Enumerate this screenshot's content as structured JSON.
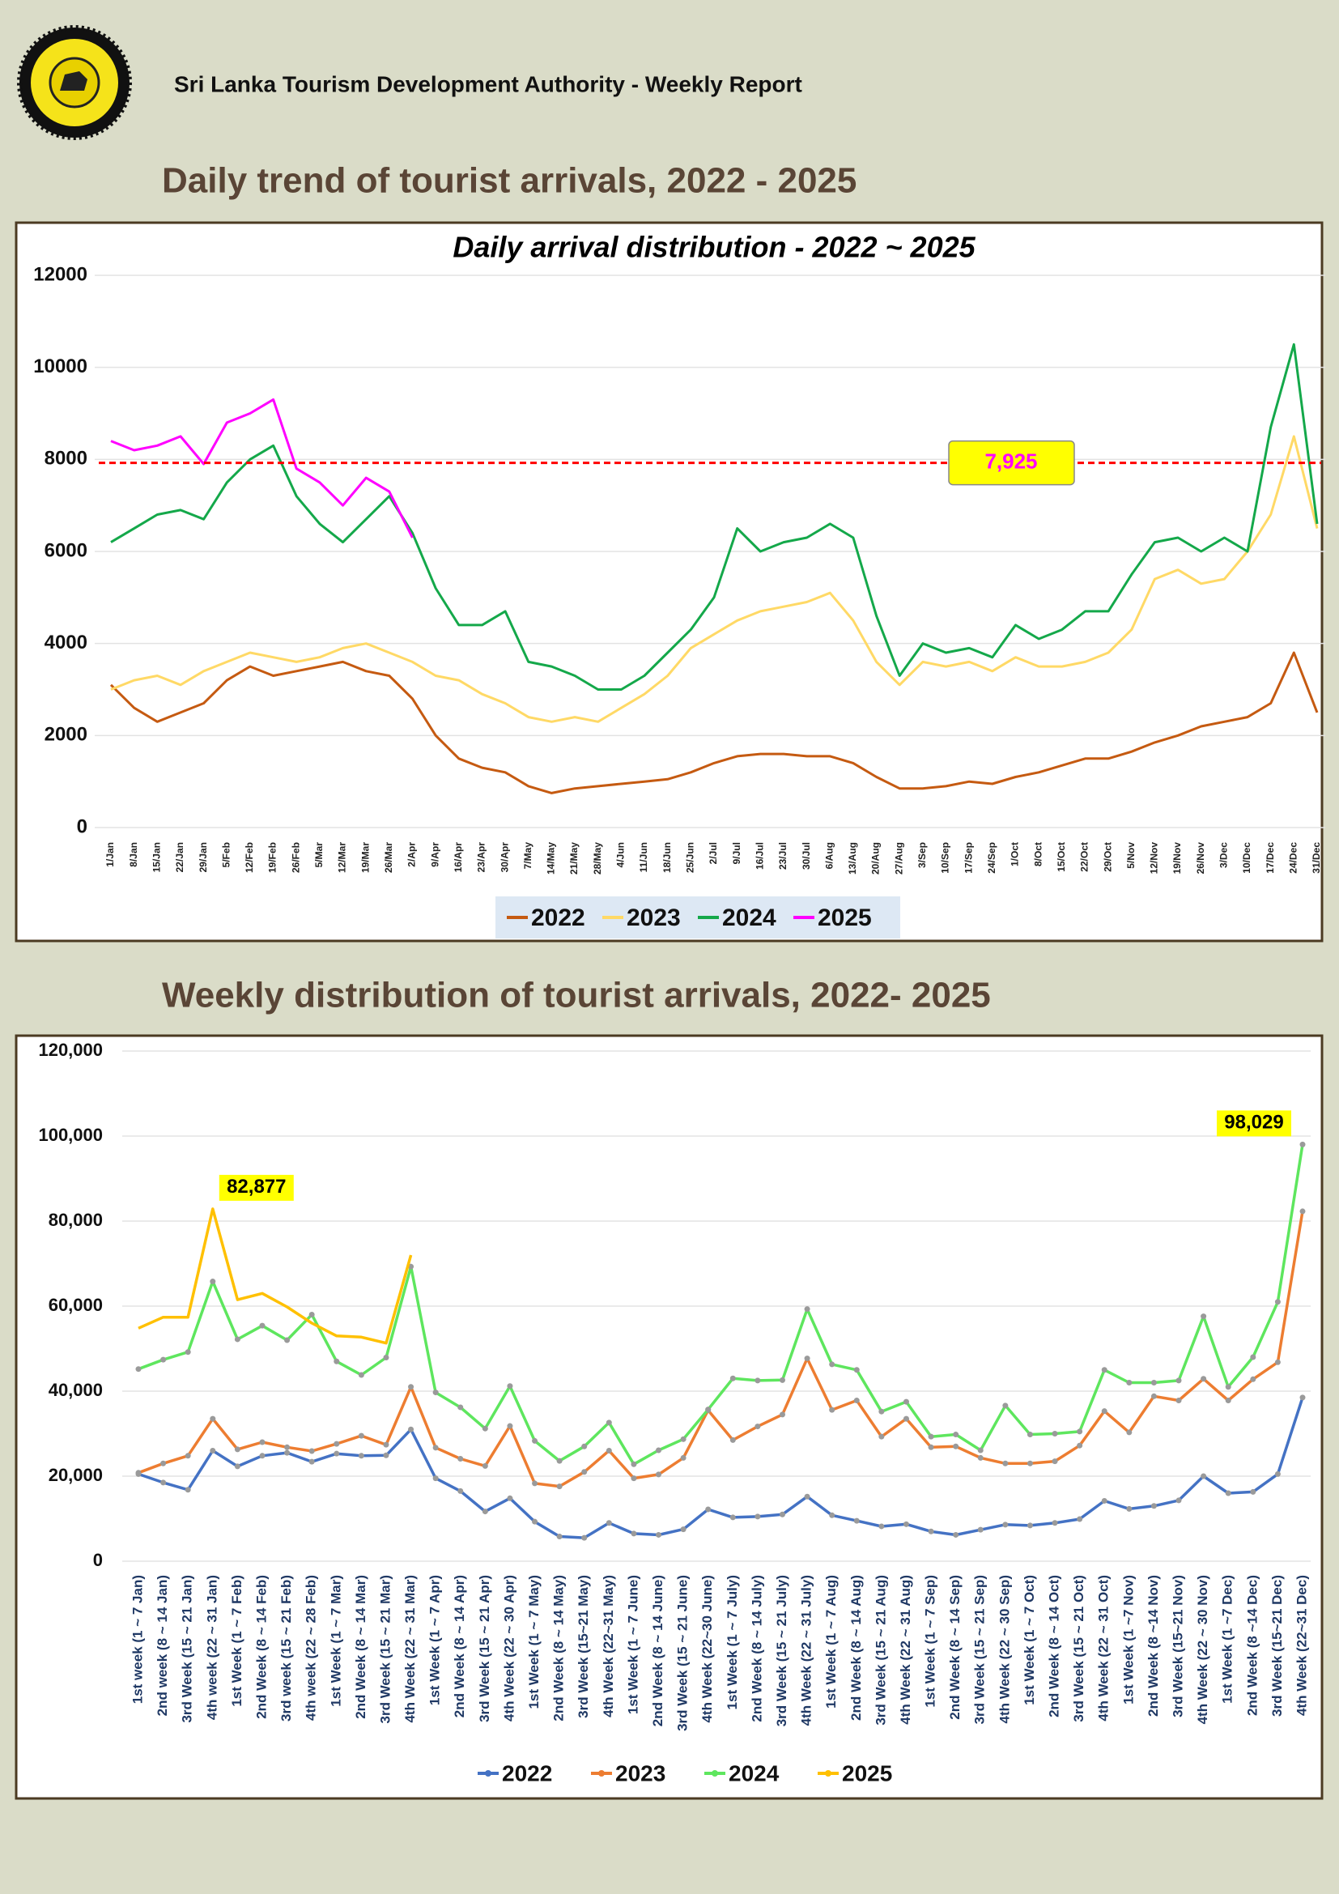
{
  "header": {
    "text": "Sri Lanka Tourism Development Authority - Weekly Report"
  },
  "headings": [
    "Daily trend of tourist arrivals, 2022 - 2025",
    "Weekly distribution of tourist arrivals, 2022- 2025"
  ],
  "chart_data": [
    {
      "type": "line",
      "title": "Daily arrival distribution - 2022 ~ 2025",
      "categories": [
        "1/Jan",
        "8/Jan",
        "15/Jan",
        "22/Jan",
        "29/Jan",
        "5/Feb",
        "12/Feb",
        "19/Feb",
        "26/Feb",
        "5/Mar",
        "12/Mar",
        "19/Mar",
        "26/Mar",
        "2/Apr",
        "9/Apr",
        "16/Apr",
        "23/Apr",
        "30/Apr",
        "7/May",
        "14/May",
        "21/May",
        "28/May",
        "4/Jun",
        "11/Jun",
        "18/Jun",
        "25/Jun",
        "2/Jul",
        "9/Jul",
        "16/Jul",
        "23/Jul",
        "30/Jul",
        "6/Aug",
        "13/Aug",
        "20/Aug",
        "27/Aug",
        "3/Sep",
        "10/Sep",
        "17/Sep",
        "24/Sep",
        "1/Oct",
        "8/Oct",
        "15/Oct",
        "22/Oct",
        "29/Oct",
        "5/Nov",
        "12/Nov",
        "19/Nov",
        "26/Nov",
        "3/Dec",
        "10/Dec",
        "17/Dec",
        "24/Dec",
        "31/Dec"
      ],
      "series": [
        {
          "name": "2022",
          "color": "#c55a11",
          "values": [
            3100,
            2600,
            2300,
            2500,
            2700,
            3200,
            3500,
            3300,
            3400,
            3500,
            3600,
            3400,
            3300,
            2800,
            2000,
            1500,
            1300,
            1200,
            900,
            750,
            850,
            900,
            950,
            1000,
            1050,
            1200,
            1400,
            1550,
            1600,
            1600,
            1550,
            1550,
            1400,
            1100,
            850,
            850,
            900,
            1000,
            950,
            1100,
            1200,
            1350,
            1500,
            1500,
            1650,
            1850,
            2000,
            2200,
            2300,
            2400,
            2700,
            3800,
            2500
          ]
        },
        {
          "name": "2023",
          "color": "#ffd966",
          "values": [
            3000,
            3200,
            3300,
            3100,
            3400,
            3600,
            3800,
            3700,
            3600,
            3700,
            3900,
            4000,
            3800,
            3600,
            3300,
            3200,
            2900,
            2700,
            2400,
            2300,
            2400,
            2300,
            2600,
            2900,
            3300,
            3900,
            4200,
            4500,
            4700,
            4800,
            4900,
            5100,
            4500,
            3600,
            3100,
            3600,
            3500,
            3600,
            3400,
            3700,
            3500,
            3500,
            3600,
            3800,
            4300,
            5400,
            5600,
            5300,
            5400,
            6000,
            6800,
            8500,
            6500
          ]
        },
        {
          "name": "2024",
          "color": "#14a84a",
          "values": [
            6200,
            6500,
            6800,
            6900,
            6700,
            7500,
            8000,
            8300,
            7200,
            6600,
            6200,
            6700,
            7200,
            6400,
            5200,
            4400,
            4400,
            4700,
            3600,
            3500,
            3300,
            3000,
            3000,
            3300,
            3800,
            4300,
            5000,
            6500,
            6000,
            6200,
            6300,
            6600,
            6300,
            4600,
            3300,
            4000,
            3800,
            3900,
            3700,
            4400,
            4100,
            4300,
            4700,
            4700,
            5500,
            6200,
            6300,
            6000,
            6300,
            6000,
            8700,
            10500,
            6600
          ]
        },
        {
          "name": "2025",
          "color": "#ff00ff",
          "values": [
            8400,
            8200,
            8300,
            8500,
            7900,
            8800,
            9000,
            9300,
            7800,
            7500,
            7000,
            7600,
            7300,
            6300,
            null,
            null,
            null,
            null,
            null,
            null,
            null,
            null,
            null,
            null,
            null,
            null,
            null,
            null,
            null,
            null,
            null,
            null,
            null,
            null,
            null,
            null,
            null,
            null,
            null,
            null,
            null,
            null,
            null,
            null,
            null,
            null,
            null,
            null,
            null,
            null,
            null,
            null,
            null
          ]
        }
      ],
      "ylim": [
        0,
        12000
      ],
      "yticks": [
        0,
        2000,
        4000,
        6000,
        8000,
        10000,
        12000
      ],
      "grid": true,
      "legend": "bottom",
      "reference_line": {
        "value": 7925,
        "label": "7,925",
        "color": "#ff0000"
      }
    },
    {
      "type": "line",
      "categories": [
        "1st week (1 ~ 7 Jan)",
        "2nd week (8 ~ 14 Jan)",
        "3rd Week (15 ~ 21 Jan)",
        "4th week (22 ~ 31 Jan)",
        "1st Week (1 ~ 7 Feb)",
        "2nd Week (8 ~ 14 Feb)",
        "3rd week (15 ~ 21 Feb)",
        "4th week (22 ~ 28 Feb)",
        "1st Week (1 ~ 7 Mar)",
        "2nd Week (8 ~ 14 Mar)",
        "3rd Week (15 ~ 21 Mar)",
        "4th Week (22 ~ 31 Mar)",
        "1st Week (1 ~ 7 Apr)",
        "2nd Week (8 ~ 14 Apr)",
        "3rd Week (15 ~ 21 Apr)",
        "4th Week (22 ~ 30 Apr)",
        "1st Week (1 ~ 7 May)",
        "2nd Week (8 ~ 14 May)",
        "3rd Week (15~21 May)",
        "4th Week (22~31 May)",
        "1st Week (1 ~ 7 June)",
        "2nd Week (8 ~ 14 June)",
        "3rd Week (15 ~ 21 June)",
        "4th Week (22~30 June)",
        "1st Week (1 ~ 7 July)",
        "2nd Week (8 ~ 14 July)",
        "3rd Week (15 ~ 21 July)",
        "4th Week (22 ~ 31 July)",
        "1st Week (1 ~ 7 Aug)",
        "2nd Week (8 ~ 14 Aug)",
        "3rd Week (15 ~ 21 Aug)",
        "4th Week (22 ~ 31 Aug)",
        "1st Week (1 ~ 7 Sep)",
        "2nd Week (8 ~ 14 Sep)",
        "3rd Week (15 ~ 21 Sep)",
        "4th Week (22 ~ 30 Sep)",
        "1st Week (1 ~ 7 Oct)",
        "2nd Week (8 ~ 14 Oct)",
        "3rd Week (15 ~ 21 Oct)",
        "4th Week (22 ~ 31 Oct)",
        "1st Week (1 ~7 Nov)",
        "2nd Week (8 ~14 Nov)",
        "3rd Week (15~21 Nov)",
        "4th Week (22 ~ 30 Nov)",
        "1st Week (1 ~7 Dec)",
        "2nd Week (8 ~14 Dec)",
        "3rd Week (15~21 Dec)",
        "4th Week (22~31 Dec)"
      ],
      "series": [
        {
          "name": "2022",
          "color": "#4472c4",
          "values": [
            20500,
            18500,
            16800,
            26000,
            22300,
            24800,
            25500,
            23400,
            25300,
            24800,
            24900,
            31000,
            19500,
            16500,
            11700,
            14800,
            9300,
            5800,
            5500,
            9000,
            6500,
            6200,
            7500,
            12200,
            10300,
            10500,
            11000,
            15200,
            10800,
            9500,
            8200,
            8700,
            7000,
            6200,
            7400,
            8600,
            8400,
            9000,
            9900,
            14200,
            12300,
            13000,
            14300,
            20000,
            16000,
            16300,
            20500,
            38500
          ]
        },
        {
          "name": "2023",
          "color": "#ed7d31",
          "values": [
            20800,
            23000,
            24800,
            33500,
            26300,
            28000,
            26800,
            25900,
            27600,
            29500,
            27400,
            41000,
            26700,
            24100,
            22400,
            31800,
            18300,
            17600,
            21000,
            26000,
            19500,
            20400,
            24300,
            35500,
            28500,
            31700,
            34500,
            47700,
            35600,
            37800,
            29300,
            33500,
            26800,
            27000,
            24300,
            23000,
            23000,
            23500,
            27200,
            35300,
            30300,
            38800,
            37800,
            42900,
            37800,
            42800,
            46800,
            82300
          ]
        },
        {
          "name": "2024",
          "color": "#5ee65e",
          "values": [
            45200,
            47400,
            49200,
            65800,
            52200,
            55400,
            52000,
            58000,
            47000,
            43800,
            47900,
            69300,
            39700,
            36200,
            31200,
            41200,
            28300,
            23600,
            27000,
            32600,
            22800,
            26100,
            28700,
            35700,
            43000,
            42500,
            42600,
            59300,
            46300,
            45000,
            35200,
            37500,
            29300,
            29800,
            26100,
            36600,
            29800,
            30000,
            30500,
            45000,
            42000,
            42000,
            42500,
            57600,
            41000,
            48000,
            61000,
            98029
          ],
          "value_labels": [
            null,
            null,
            null,
            null,
            null,
            null,
            null,
            null,
            null,
            null,
            null,
            null,
            null,
            null,
            null,
            null,
            null,
            null,
            null,
            null,
            null,
            null,
            null,
            null,
            null,
            null,
            null,
            null,
            null,
            null,
            null,
            null,
            null,
            null,
            null,
            null,
            null,
            null,
            null,
            null,
            null,
            null,
            null,
            null,
            null,
            null,
            null,
            "98,029"
          ]
        },
        {
          "name": "2025",
          "color": "#ffc000",
          "values": [
            54800,
            57400,
            57400,
            82877,
            61500,
            63000,
            59800,
            56000,
            53000,
            52700,
            51300,
            72000,
            null,
            null,
            null,
            null,
            null,
            null,
            null,
            null,
            null,
            null,
            null,
            null,
            null,
            null,
            null,
            null,
            null,
            null,
            null,
            null,
            null,
            null,
            null,
            null,
            null,
            null,
            null,
            null,
            null,
            null,
            null,
            null,
            null,
            null,
            null,
            null
          ],
          "value_labels": [
            null,
            null,
            null,
            "82,877",
            null,
            null,
            null,
            null,
            null,
            null,
            null,
            null,
            null,
            null,
            null,
            null,
            null,
            null,
            null,
            null,
            null,
            null,
            null,
            null,
            null,
            null,
            null,
            null,
            null,
            null,
            null,
            null,
            null,
            null,
            null,
            null,
            null,
            null,
            null,
            null,
            null,
            null,
            null,
            null,
            null,
            null,
            null,
            null
          ]
        }
      ],
      "ylim": [
        0,
        120000
      ],
      "yticks": [
        0,
        {
          "value": 20000,
          "label": "20,000"
        },
        {
          "value": 40000,
          "label": "40,000"
        },
        {
          "value": 60000,
          "label": "60,000"
        },
        {
          "value": 80000,
          "label": "80,000"
        },
        {
          "value": 100000,
          "label": "100,000"
        },
        {
          "value": 120000,
          "label": "120,000"
        }
      ],
      "grid": true,
      "legend": "bottom"
    }
  ]
}
